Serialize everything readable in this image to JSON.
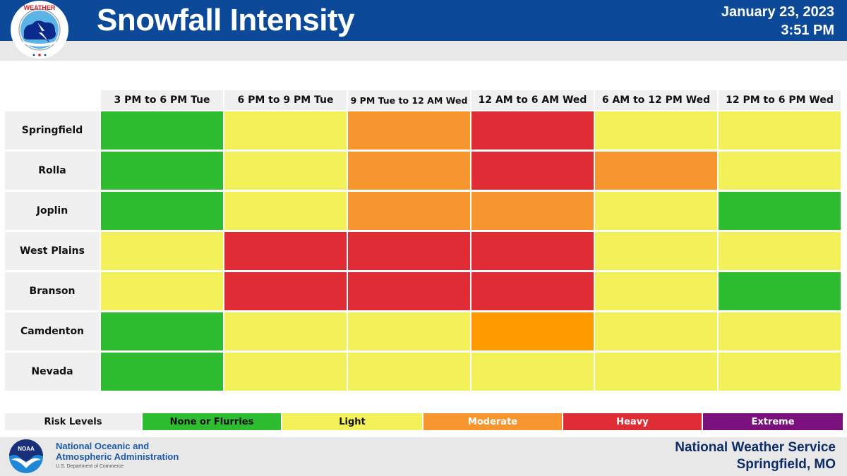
{
  "header": {
    "title": "Snowfall Intensity",
    "date": "January 23, 2023",
    "time": "3:51 PM",
    "logo_text": "NATIONAL WEATHER SERVICE"
  },
  "colors": {
    "header_bg": "#0C4A99",
    "band_bg": "#E8E8E8",
    "none": "#2EBD31",
    "light": "#F3F159",
    "moderate": "#F7962F",
    "moderate_bright": "#FF9900",
    "heavy": "#E02D35",
    "extreme": "#7A0F7E"
  },
  "chart_data": {
    "type": "heatmap",
    "title": "Snowfall Intensity",
    "columns": [
      "3 PM to 6 PM Tue",
      "6 PM to 9 PM Tue",
      "9 PM Tue to 12 AM Wed",
      "12 AM to 6 AM Wed",
      "6 AM to 12 PM Wed",
      "12 PM to 6 PM Wed"
    ],
    "rows": [
      "Springfield",
      "Rolla",
      "Joplin",
      "West Plains",
      "Branson",
      "Camdenton",
      "Nevada"
    ],
    "level_scale": [
      "None or Flurries",
      "Light",
      "Moderate",
      "Heavy",
      "Extreme"
    ],
    "values": [
      [
        "None or Flurries",
        "Light",
        "Moderate",
        "Heavy",
        "Light",
        "Light"
      ],
      [
        "None or Flurries",
        "Light",
        "Moderate",
        "Heavy",
        "Moderate",
        "Light"
      ],
      [
        "None or Flurries",
        "Light",
        "Moderate",
        "Moderate",
        "Light",
        "None or Flurries"
      ],
      [
        "Light",
        "Heavy",
        "Heavy",
        "Heavy",
        "Light",
        "Light"
      ],
      [
        "Light",
        "Heavy",
        "Heavy",
        "Heavy",
        "Light",
        "None or Flurries"
      ],
      [
        "None or Flurries",
        "Light",
        "Light",
        "Moderate",
        "Light",
        "Light"
      ],
      [
        "None or Flurries",
        "Light",
        "Light",
        "Light",
        "Light",
        "Light"
      ]
    ],
    "legend": {
      "title": "Risk Levels",
      "items": [
        "None or Flurries",
        "Light",
        "Moderate",
        "Heavy",
        "Extreme"
      ],
      "placement": "bottom"
    }
  },
  "footer": {
    "noaa_logo_text": "NOAA",
    "noaa_line1": "National Oceanic and",
    "noaa_line2": "Atmospheric Administration",
    "noaa_dept": "U.S. Department of Commerce",
    "office_line1": "National Weather Service",
    "office_line2": "Springfield, MO"
  }
}
